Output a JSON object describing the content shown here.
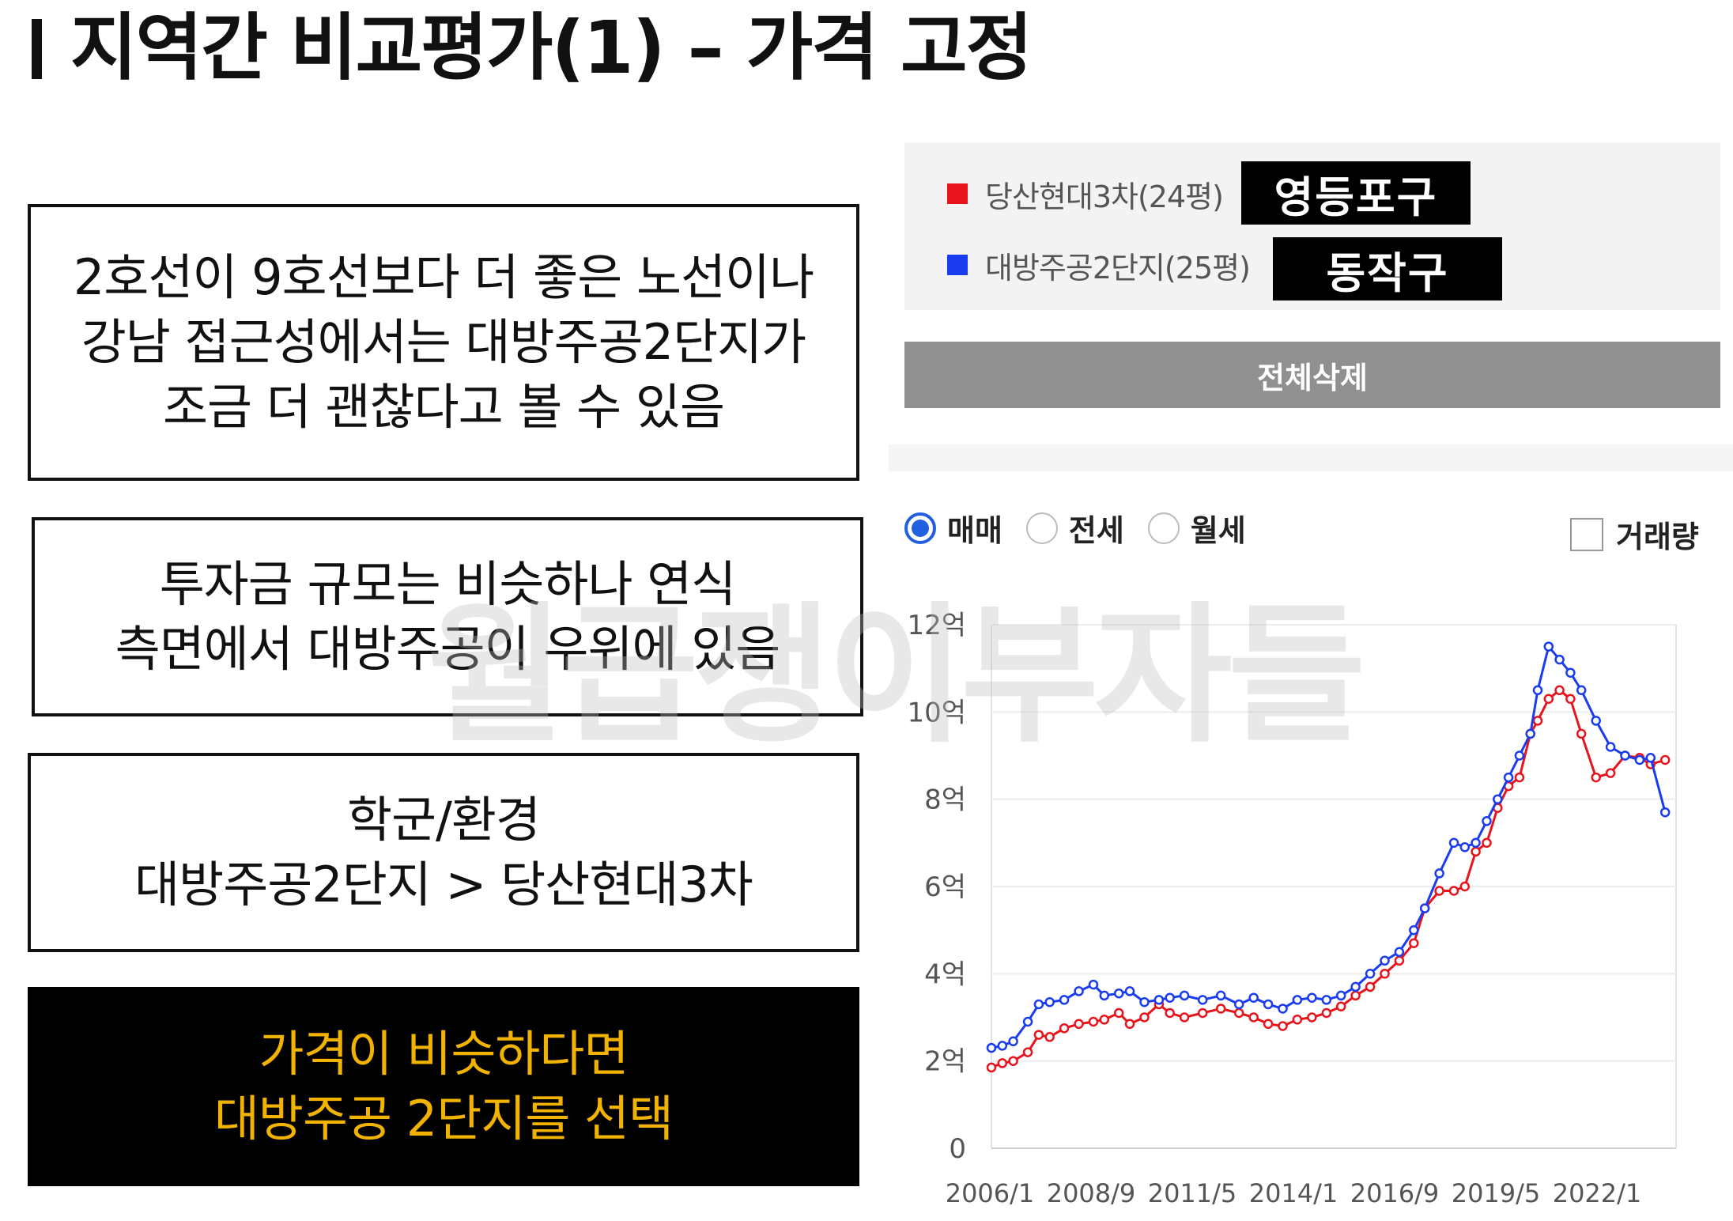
{
  "title": "지역간 비교평가(1) –  가격 고정",
  "boxes": [
    {
      "lines": [
        "2호선이 9호선보다 더 좋은 노선이나",
        "강남 접근성에서는 대방주공2단지가",
        "조금 더 괜찮다고 볼 수 있음"
      ]
    },
    {
      "lines": [
        "투자금 규모는 비슷하나 연식",
        "측면에서 대방주공이 우위에 있음"
      ]
    },
    {
      "lines": [
        "학군/환경",
        "대방주공2단지 > 당산현대3차"
      ]
    },
    {
      "lines": [
        "가격이 비슷하다면",
        "대방주공 2단지를 선택"
      ]
    }
  ],
  "legend": [
    {
      "label": "당산현대3차(24평)",
      "tag": "영등포구",
      "color": "#e8141c"
    },
    {
      "label": "대방주공2단지(25평)",
      "tag": "동작구",
      "color": "#1a3cf0"
    }
  ],
  "delete_all": "전체삭제",
  "tabs": {
    "sale": "매매",
    "jeonse": "전세",
    "monthly": "월세"
  },
  "volume_label": "거래량",
  "watermark": "월급쟁이부자들",
  "chart_data": {
    "type": "line",
    "x_ticks": [
      "2006/1",
      "2008/9",
      "2011/5",
      "2014/1",
      "2016/9",
      "2019/5",
      "2022/1"
    ],
    "y_ticks": [
      "0",
      "2억",
      "4억",
      "6억",
      "8억",
      "10억",
      "12억"
    ],
    "ylim": [
      0,
      12
    ],
    "xlim": [
      2006.0,
      2024.8
    ],
    "y_unit": "억",
    "series": [
      {
        "name": "당산현대3차(24평)",
        "color": "#e8141c",
        "points": [
          [
            2006.0,
            1.85
          ],
          [
            2006.3,
            1.95
          ],
          [
            2006.6,
            2.0
          ],
          [
            2007.0,
            2.2
          ],
          [
            2007.3,
            2.6
          ],
          [
            2007.6,
            2.55
          ],
          [
            2008.0,
            2.75
          ],
          [
            2008.4,
            2.85
          ],
          [
            2008.8,
            2.9
          ],
          [
            2009.1,
            2.95
          ],
          [
            2009.5,
            3.1
          ],
          [
            2009.8,
            2.85
          ],
          [
            2010.2,
            3.0
          ],
          [
            2010.6,
            3.3
          ],
          [
            2010.9,
            3.1
          ],
          [
            2011.3,
            3.0
          ],
          [
            2011.8,
            3.1
          ],
          [
            2012.3,
            3.2
          ],
          [
            2012.8,
            3.1
          ],
          [
            2013.2,
            3.0
          ],
          [
            2013.6,
            2.85
          ],
          [
            2014.0,
            2.8
          ],
          [
            2014.4,
            2.95
          ],
          [
            2014.8,
            3.0
          ],
          [
            2015.2,
            3.1
          ],
          [
            2015.6,
            3.25
          ],
          [
            2016.0,
            3.5
          ],
          [
            2016.4,
            3.7
          ],
          [
            2016.8,
            4.0
          ],
          [
            2017.2,
            4.3
          ],
          [
            2017.6,
            4.7
          ],
          [
            2017.9,
            5.5
          ],
          [
            2018.3,
            5.9
          ],
          [
            2018.7,
            5.9
          ],
          [
            2019.0,
            6.0
          ],
          [
            2019.3,
            6.8
          ],
          [
            2019.6,
            7.0
          ],
          [
            2019.9,
            7.8
          ],
          [
            2020.2,
            8.3
          ],
          [
            2020.5,
            8.5
          ],
          [
            2020.8,
            9.5
          ],
          [
            2021.0,
            9.8
          ],
          [
            2021.3,
            10.3
          ],
          [
            2021.6,
            10.5
          ],
          [
            2021.9,
            10.3
          ],
          [
            2022.2,
            9.5
          ],
          [
            2022.6,
            8.5
          ],
          [
            2023.0,
            8.6
          ],
          [
            2023.4,
            9.0
          ],
          [
            2023.8,
            8.95
          ],
          [
            2024.1,
            8.8
          ],
          [
            2024.5,
            8.9
          ]
        ]
      },
      {
        "name": "대방주공2단지(25평)",
        "color": "#1a3cf0",
        "points": [
          [
            2006.0,
            2.3
          ],
          [
            2006.3,
            2.35
          ],
          [
            2006.6,
            2.45
          ],
          [
            2007.0,
            2.9
          ],
          [
            2007.3,
            3.3
          ],
          [
            2007.6,
            3.35
          ],
          [
            2008.0,
            3.4
          ],
          [
            2008.4,
            3.6
          ],
          [
            2008.8,
            3.75
          ],
          [
            2009.1,
            3.5
          ],
          [
            2009.5,
            3.55
          ],
          [
            2009.8,
            3.6
          ],
          [
            2010.2,
            3.35
          ],
          [
            2010.6,
            3.4
          ],
          [
            2010.9,
            3.45
          ],
          [
            2011.3,
            3.5
          ],
          [
            2011.8,
            3.4
          ],
          [
            2012.3,
            3.5
          ],
          [
            2012.8,
            3.3
          ],
          [
            2013.2,
            3.45
          ],
          [
            2013.6,
            3.3
          ],
          [
            2014.0,
            3.2
          ],
          [
            2014.4,
            3.4
          ],
          [
            2014.8,
            3.45
          ],
          [
            2015.2,
            3.4
          ],
          [
            2015.6,
            3.5
          ],
          [
            2016.0,
            3.7
          ],
          [
            2016.4,
            4.0
          ],
          [
            2016.8,
            4.3
          ],
          [
            2017.2,
            4.5
          ],
          [
            2017.6,
            5.0
          ],
          [
            2017.9,
            5.5
          ],
          [
            2018.3,
            6.3
          ],
          [
            2018.7,
            7.0
          ],
          [
            2019.0,
            6.9
          ],
          [
            2019.3,
            7.0
          ],
          [
            2019.6,
            7.5
          ],
          [
            2019.9,
            8.0
          ],
          [
            2020.2,
            8.5
          ],
          [
            2020.5,
            9.0
          ],
          [
            2020.8,
            9.5
          ],
          [
            2021.0,
            10.5
          ],
          [
            2021.3,
            11.5
          ],
          [
            2021.6,
            11.2
          ],
          [
            2021.9,
            10.9
          ],
          [
            2022.2,
            10.5
          ],
          [
            2022.6,
            9.8
          ],
          [
            2023.0,
            9.2
          ],
          [
            2023.4,
            9.0
          ],
          [
            2023.8,
            8.9
          ],
          [
            2024.1,
            8.95
          ],
          [
            2024.5,
            7.7
          ]
        ]
      }
    ]
  }
}
